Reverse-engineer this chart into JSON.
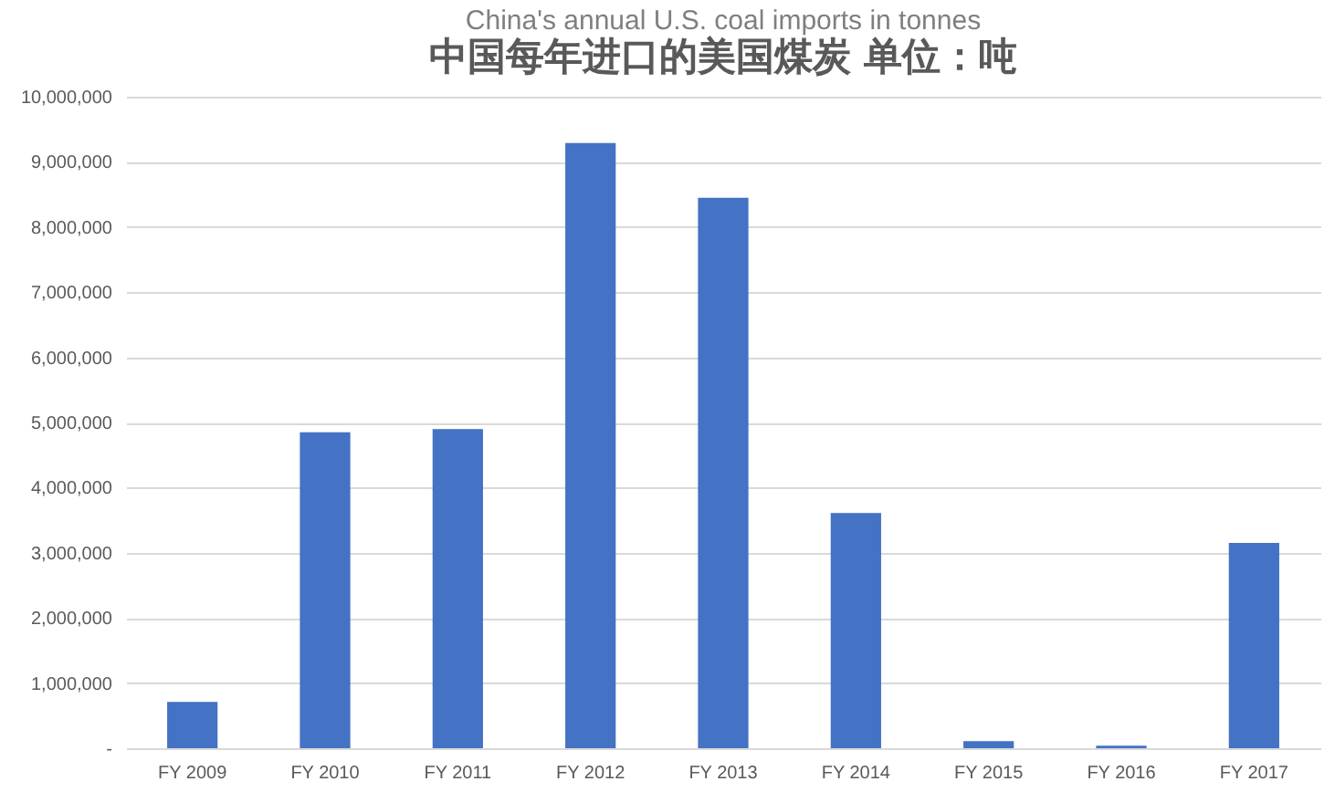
{
  "chart_data": {
    "type": "bar",
    "title": "China's annual U.S. coal imports in tonnes",
    "subtitle": "中国每年进口的美国煤炭 单位：吨",
    "categories": [
      "FY 2009",
      "FY 2010",
      "FY 2011",
      "FY 2012",
      "FY 2013",
      "FY 2014",
      "FY 2015",
      "FY 2016",
      "FY 2017"
    ],
    "values": [
      710000,
      4850000,
      4900000,
      9290000,
      8450000,
      3610000,
      110000,
      40000,
      3150000
    ],
    "color": "#4472c4",
    "ylim": [
      0,
      10000000
    ],
    "yticks": [
      {
        "value": 0,
        "label": "-"
      },
      {
        "value": 1000000,
        "label": "1,000,000"
      },
      {
        "value": 2000000,
        "label": "2,000,000"
      },
      {
        "value": 3000000,
        "label": "3,000,000"
      },
      {
        "value": 4000000,
        "label": "4,000,000"
      },
      {
        "value": 5000000,
        "label": "5,000,000"
      },
      {
        "value": 6000000,
        "label": "6,000,000"
      },
      {
        "value": 7000000,
        "label": "7,000,000"
      },
      {
        "value": 8000000,
        "label": "8,000,000"
      },
      {
        "value": 9000000,
        "label": "9,000,000"
      },
      {
        "value": 10000000,
        "label": "10,000,000"
      }
    ],
    "grid": "y"
  }
}
